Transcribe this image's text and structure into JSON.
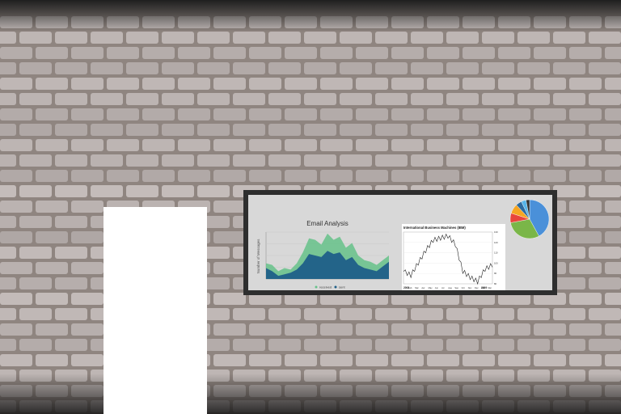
{
  "email_chart": {
    "title": "Email Analysis",
    "ylabel": "Number of Messages",
    "legend": [
      "received",
      "sent"
    ],
    "colors": {
      "received": "#66c28a",
      "sent": "#1f5f88"
    }
  },
  "stock_chart": {
    "title": "International Business Machines (IBM)",
    "year_start": "2008",
    "year_end": "2009",
    "x_ticks": [
      "Feb",
      "Mar",
      "Apr",
      "May",
      "Jun",
      "Jul",
      "Aug",
      "Sep",
      "Oct",
      "Nov",
      "Dec",
      "Feb",
      "Mar"
    ],
    "y_ticks": [
      "130",
      "120",
      "110",
      "100",
      "90",
      "80"
    ]
  },
  "pie_chart": {
    "colors": [
      "#4a90d9",
      "#7ab648",
      "#e8453c",
      "#f5a623",
      "#2d6a9f",
      "#56b4e9",
      "#333333"
    ]
  },
  "chart_data": [
    {
      "type": "area",
      "title": "Email Analysis",
      "ylabel": "Number of Messages",
      "x": [
        0,
        1,
        2,
        3,
        4,
        5,
        6,
        7,
        8,
        9,
        10,
        11,
        12,
        13,
        14,
        15,
        16,
        17,
        18,
        19,
        20
      ],
      "series": [
        {
          "name": "received",
          "values": [
            20,
            18,
            10,
            14,
            12,
            20,
            34,
            52,
            50,
            44,
            58,
            50,
            54,
            40,
            46,
            30,
            24,
            22,
            18,
            24,
            30
          ]
        },
        {
          "name": "sent",
          "values": [
            14,
            10,
            4,
            6,
            8,
            12,
            20,
            32,
            30,
            28,
            36,
            32,
            34,
            24,
            28,
            18,
            14,
            12,
            10,
            16,
            22
          ]
        }
      ]
    },
    {
      "type": "line",
      "title": "International Business Machines (IBM)",
      "categories": [
        "Feb",
        "Mar",
        "Apr",
        "May",
        "Jun",
        "Jul",
        "Aug",
        "Sep",
        "Oct",
        "Nov",
        "Dec",
        "Feb",
        "Mar"
      ],
      "values": [
        92,
        88,
        100,
        112,
        122,
        124,
        126,
        118,
        92,
        86,
        82,
        94,
        98
      ],
      "ylim": [
        80,
        130
      ]
    },
    {
      "type": "pie",
      "values": [
        42,
        30,
        8,
        8,
        5,
        4,
        3
      ]
    }
  ]
}
